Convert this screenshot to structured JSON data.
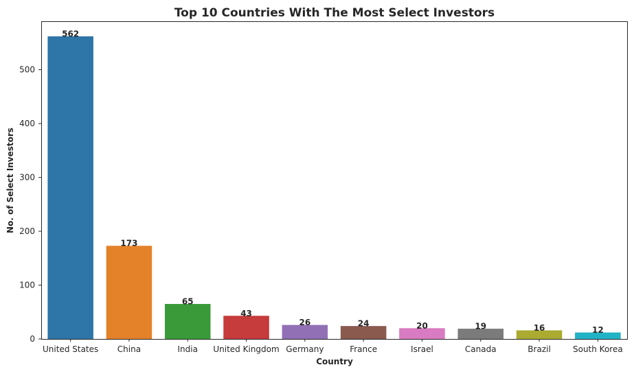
{
  "chart_data": {
    "type": "bar",
    "title": "Top 10 Countries With The Most Select Investors",
    "xlabel": "Country",
    "ylabel": "No. of Select Investors",
    "categories": [
      "United States",
      "China",
      "India",
      "United Kingdom",
      "Germany",
      "France",
      "Israel",
      "Canada",
      "Brazil",
      "South Korea"
    ],
    "values": [
      562,
      173,
      65,
      43,
      26,
      24,
      20,
      19,
      16,
      12
    ],
    "colors": [
      "#2e75a8",
      "#e4822a",
      "#3a9a3a",
      "#c63b3c",
      "#9270b5",
      "#8a5a4e",
      "#d97bc2",
      "#7b7b7b",
      "#aaab30",
      "#22b2c5"
    ],
    "ylim": [
      0,
      590
    ],
    "yticks": [
      0,
      100,
      200,
      300,
      400,
      500
    ],
    "grid": false,
    "legend": "none"
  }
}
